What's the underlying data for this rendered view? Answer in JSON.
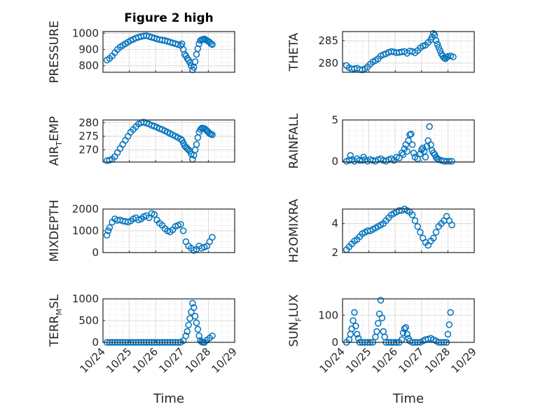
{
  "figure": {
    "title": "Figure 2 high",
    "marker_color": "#0072BD",
    "xlabel": "Time",
    "x_tick_labels": [
      "10/24",
      "10/25",
      "10/26",
      "10/27",
      "10/28",
      "10/29"
    ]
  },
  "chart_data": [
    {
      "type": "scatter",
      "ylabel": "PRESSURE",
      "title": "Figure 2 high",
      "yticks": [
        800,
        900,
        1000
      ],
      "ylim": [
        760,
        1010
      ],
      "xlim": [
        0,
        5
      ],
      "grid": true,
      "series": [
        {
          "x": [
            0.15,
            0.25,
            0.35,
            0.45,
            0.55,
            0.65,
            0.75,
            0.85,
            0.95,
            1.05,
            1.15,
            1.25,
            1.35,
            1.45,
            1.55,
            1.65,
            1.75,
            1.85,
            1.95,
            2.05,
            2.15,
            2.25,
            2.35,
            2.45,
            2.55,
            2.65,
            2.75,
            2.85,
            2.95,
            3.0,
            3.05,
            3.1,
            3.15,
            3.2,
            3.25,
            3.3,
            3.35,
            3.4,
            3.45,
            3.5,
            3.55,
            3.6,
            3.65,
            3.7,
            3.75,
            3.8,
            3.85,
            3.9,
            3.95,
            4.0,
            4.05,
            4.1,
            4.15
          ],
          "y": [
            835,
            845,
            860,
            880,
            900,
            915,
            925,
            935,
            945,
            955,
            962,
            970,
            975,
            980,
            983,
            985,
            980,
            975,
            970,
            965,
            960,
            958,
            955,
            950,
            945,
            940,
            935,
            930,
            925,
            935,
            900,
            870,
            860,
            845,
            835,
            820,
            800,
            775,
            790,
            825,
            870,
            905,
            935,
            955,
            960,
            962,
            965,
            960,
            955,
            950,
            945,
            935,
            930
          ]
        }
      ]
    },
    {
      "type": "scatter",
      "ylabel": "THETA",
      "yticks": [
        280,
        285
      ],
      "ylim": [
        278,
        287
      ],
      "xlim": [
        0,
        5
      ],
      "grid": true,
      "series": [
        {
          "x": [
            0.15,
            0.25,
            0.35,
            0.45,
            0.55,
            0.65,
            0.75,
            0.85,
            0.95,
            1.05,
            1.15,
            1.25,
            1.35,
            1.45,
            1.55,
            1.65,
            1.75,
            1.85,
            1.95,
            2.05,
            2.15,
            2.25,
            2.35,
            2.45,
            2.55,
            2.65,
            2.75,
            2.85,
            2.95,
            3.05,
            3.15,
            3.25,
            3.35,
            3.4,
            3.45,
            3.5,
            3.55,
            3.6,
            3.65,
            3.7,
            3.75,
            3.8,
            3.85,
            3.9,
            3.95,
            4.0,
            4.1,
            4.2
          ],
          "y": [
            279.5,
            279.0,
            278.7,
            278.8,
            278.9,
            278.6,
            278.5,
            278.8,
            279.2,
            279.8,
            280.3,
            280.6,
            281.0,
            281.6,
            281.9,
            282.1,
            282.4,
            282.6,
            282.5,
            282.3,
            282.4,
            282.5,
            282.6,
            282.2,
            282.7,
            282.6,
            282.3,
            282.8,
            283.4,
            283.8,
            284.0,
            284.6,
            285.2,
            285.8,
            286.6,
            286.2,
            285.0,
            284.2,
            283.5,
            282.8,
            282.1,
            281.6,
            281.2,
            281.0,
            281.3,
            281.5,
            281.6,
            281.4
          ]
        }
      ]
    },
    {
      "type": "scatter",
      "ylabel": "AIR",
      "ylabel_sub": "T",
      "ylabel_rest": "EMP",
      "yticks": [
        270,
        275,
        280
      ],
      "ylim": [
        265.5,
        281
      ],
      "xlim": [
        0,
        5
      ],
      "grid": true,
      "series": [
        {
          "x": [
            0.15,
            0.25,
            0.35,
            0.45,
            0.55,
            0.65,
            0.75,
            0.85,
            0.95,
            1.05,
            1.15,
            1.25,
            1.35,
            1.45,
            1.55,
            1.65,
            1.75,
            1.85,
            1.95,
            2.05,
            2.15,
            2.25,
            2.35,
            2.45,
            2.55,
            2.65,
            2.75,
            2.85,
            2.95,
            3.0,
            3.05,
            3.1,
            3.15,
            3.2,
            3.25,
            3.3,
            3.35,
            3.4,
            3.45,
            3.5,
            3.55,
            3.6,
            3.65,
            3.7,
            3.75,
            3.8,
            3.85,
            3.9,
            3.95,
            4.0,
            4.05,
            4.1,
            4.15
          ],
          "y": [
            266.0,
            266.2,
            266.6,
            267.5,
            269.0,
            270.5,
            272.0,
            273.5,
            275.0,
            276.5,
            277.5,
            278.5,
            279.5,
            280.0,
            280.2,
            279.8,
            279.5,
            279.0,
            278.7,
            278.3,
            277.8,
            277.5,
            277.0,
            276.5,
            276.0,
            275.5,
            275.0,
            274.5,
            274.0,
            273.5,
            272.5,
            271.5,
            271.0,
            270.5,
            270.0,
            269.5,
            268.5,
            266.5,
            268.0,
            270.0,
            272.0,
            274.5,
            276.5,
            277.5,
            278.0,
            278.0,
            277.8,
            277.5,
            277.0,
            276.5,
            276.0,
            275.8,
            275.5
          ]
        }
      ]
    },
    {
      "type": "scatter",
      "ylabel": "RAINFALL",
      "yticks": [
        0,
        5
      ],
      "ylim": [
        -0.1,
        5
      ],
      "xlim": [
        0,
        5
      ],
      "grid": true,
      "series": [
        {
          "x": [
            0.15,
            0.25,
            0.3,
            0.35,
            0.45,
            0.55,
            0.65,
            0.75,
            0.8,
            0.85,
            0.95,
            1.05,
            1.15,
            1.25,
            1.35,
            1.45,
            1.55,
            1.65,
            1.75,
            1.85,
            1.95,
            2.05,
            2.15,
            2.25,
            2.3,
            2.35,
            2.4,
            2.45,
            2.5,
            2.55,
            2.6,
            2.65,
            2.7,
            2.75,
            2.85,
            2.95,
            3.0,
            3.05,
            3.1,
            3.15,
            3.2,
            3.25,
            3.3,
            3.35,
            3.4,
            3.45,
            3.5,
            3.55,
            3.6,
            3.65,
            3.75,
            3.85,
            3.95,
            4.05,
            4.15
          ],
          "y": [
            0.0,
            0.1,
            0.7,
            0.2,
            0.0,
            0.3,
            0.1,
            0.1,
            0.5,
            0.2,
            0.0,
            0.2,
            0.1,
            0.0,
            0.2,
            0.3,
            0.1,
            0.0,
            0.2,
            0.3,
            0.1,
            0.5,
            0.4,
            1.0,
            0.8,
            1.5,
            2.0,
            1.2,
            2.5,
            3.2,
            3.3,
            2.0,
            1.0,
            0.5,
            0.3,
            0.9,
            1.4,
            1.6,
            1.2,
            0.5,
            1.8,
            2.5,
            4.2,
            2.0,
            1.3,
            1.0,
            0.8,
            0.5,
            0.3,
            0.2,
            0.1,
            0.0,
            0.0,
            0.0,
            0.0
          ]
        }
      ]
    },
    {
      "type": "scatter",
      "ylabel": "MIXDEPTH",
      "yticks": [
        0,
        1000,
        2000
      ],
      "ylim": [
        0,
        2000
      ],
      "xlim": [
        0,
        5
      ],
      "grid": true,
      "series": [
        {
          "x": [
            0.15,
            0.2,
            0.25,
            0.35,
            0.45,
            0.55,
            0.65,
            0.75,
            0.85,
            0.95,
            1.05,
            1.15,
            1.25,
            1.35,
            1.45,
            1.55,
            1.65,
            1.75,
            1.85,
            1.95,
            2.05,
            2.15,
            2.25,
            2.35,
            2.45,
            2.55,
            2.65,
            2.75,
            2.85,
            2.95,
            3.05,
            3.15,
            3.25,
            3.35,
            3.45,
            3.55,
            3.65,
            3.75,
            3.85,
            3.95,
            4.05,
            4.15
          ],
          "y": [
            800,
            1000,
            1150,
            1400,
            1550,
            1480,
            1500,
            1450,
            1430,
            1400,
            1450,
            1550,
            1600,
            1500,
            1550,
            1650,
            1700,
            1600,
            1800,
            1750,
            1500,
            1350,
            1250,
            1100,
            1000,
            950,
            1050,
            1200,
            1250,
            1300,
            1000,
            500,
            300,
            200,
            100,
            150,
            300,
            200,
            250,
            300,
            500,
            700
          ]
        }
      ]
    },
    {
      "type": "scatter",
      "ylabel": "H2OMIXRA",
      "yticks": [
        2,
        4
      ],
      "ylim": [
        2,
        5
      ],
      "xlim": [
        0,
        5
      ],
      "grid": true,
      "series": [
        {
          "x": [
            0.15,
            0.25,
            0.35,
            0.45,
            0.55,
            0.65,
            0.75,
            0.85,
            0.95,
            1.05,
            1.15,
            1.25,
            1.35,
            1.45,
            1.55,
            1.65,
            1.75,
            1.85,
            1.95,
            2.05,
            2.15,
            2.25,
            2.35,
            2.45,
            2.55,
            2.65,
            2.75,
            2.85,
            2.95,
            3.05,
            3.15,
            3.25,
            3.35,
            3.45,
            3.55,
            3.65,
            3.75,
            3.85,
            3.95,
            4.05,
            4.15
          ],
          "y": [
            2.2,
            2.4,
            2.6,
            2.8,
            2.9,
            3.1,
            3.3,
            3.4,
            3.5,
            3.5,
            3.6,
            3.7,
            3.8,
            3.9,
            4.0,
            4.2,
            4.4,
            4.6,
            4.7,
            4.8,
            4.9,
            4.9,
            5.0,
            4.9,
            4.8,
            4.6,
            4.2,
            3.8,
            3.4,
            3.0,
            2.7,
            2.5,
            2.8,
            3.0,
            3.4,
            3.8,
            4.0,
            4.2,
            4.5,
            4.2,
            3.9
          ]
        }
      ]
    },
    {
      "type": "scatter",
      "ylabel": "TERR",
      "ylabel_sub": "M",
      "ylabel_rest": "SL",
      "yticks": [
        0,
        500,
        1000
      ],
      "ylim": [
        0,
        1000
      ],
      "xlim": [
        0,
        5
      ],
      "grid": true,
      "series": [
        {
          "x": [
            0.15,
            0.25,
            0.35,
            0.45,
            0.55,
            0.65,
            0.75,
            0.85,
            0.95,
            1.05,
            1.15,
            1.25,
            1.35,
            1.45,
            1.55,
            1.65,
            1.75,
            1.85,
            1.95,
            2.05,
            2.15,
            2.25,
            2.35,
            2.45,
            2.55,
            2.65,
            2.75,
            2.85,
            2.95,
            3.05,
            3.15,
            3.2,
            3.25,
            3.3,
            3.35,
            3.4,
            3.45,
            3.5,
            3.55,
            3.6,
            3.65,
            3.7,
            3.75,
            3.8,
            3.85,
            3.95,
            4.05,
            4.15
          ],
          "y": [
            0,
            0,
            0,
            0,
            0,
            0,
            0,
            0,
            0,
            0,
            0,
            0,
            0,
            0,
            0,
            0,
            0,
            0,
            0,
            0,
            0,
            0,
            0,
            0,
            0,
            0,
            0,
            0,
            0,
            40,
            150,
            250,
            400,
            550,
            700,
            900,
            800,
            600,
            450,
            300,
            150,
            40,
            10,
            0,
            0,
            50,
            100,
            150
          ]
        }
      ]
    },
    {
      "type": "scatter",
      "ylabel": "SUN",
      "ylabel_sub": "F",
      "ylabel_rest": "LUX",
      "yticks": [
        0,
        100
      ],
      "ylim": [
        0,
        160
      ],
      "xlim": [
        0,
        5
      ],
      "grid": true,
      "series": [
        {
          "x": [
            0.15,
            0.25,
            0.3,
            0.35,
            0.4,
            0.45,
            0.5,
            0.55,
            0.6,
            0.65,
            0.75,
            0.85,
            0.95,
            1.05,
            1.15,
            1.25,
            1.3,
            1.35,
            1.4,
            1.45,
            1.5,
            1.55,
            1.6,
            1.65,
            1.75,
            1.85,
            1.95,
            2.05,
            2.15,
            2.25,
            2.3,
            2.35,
            2.4,
            2.45,
            2.5,
            2.55,
            2.65,
            2.75,
            2.85,
            2.95,
            3.05,
            3.15,
            3.25,
            3.35,
            3.45,
            3.55,
            3.65,
            3.75,
            3.85,
            3.95,
            4.0,
            4.05,
            4.1
          ],
          "y": [
            0,
            10,
            30,
            50,
            80,
            110,
            60,
            30,
            15,
            0,
            0,
            0,
            0,
            0,
            0,
            20,
            40,
            70,
            105,
            155,
            90,
            40,
            20,
            0,
            0,
            0,
            0,
            0,
            0,
            10,
            35,
            50,
            55,
            30,
            15,
            5,
            0,
            0,
            0,
            0,
            5,
            10,
            12,
            15,
            10,
            5,
            0,
            0,
            0,
            0,
            30,
            65,
            110
          ]
        }
      ]
    }
  ]
}
